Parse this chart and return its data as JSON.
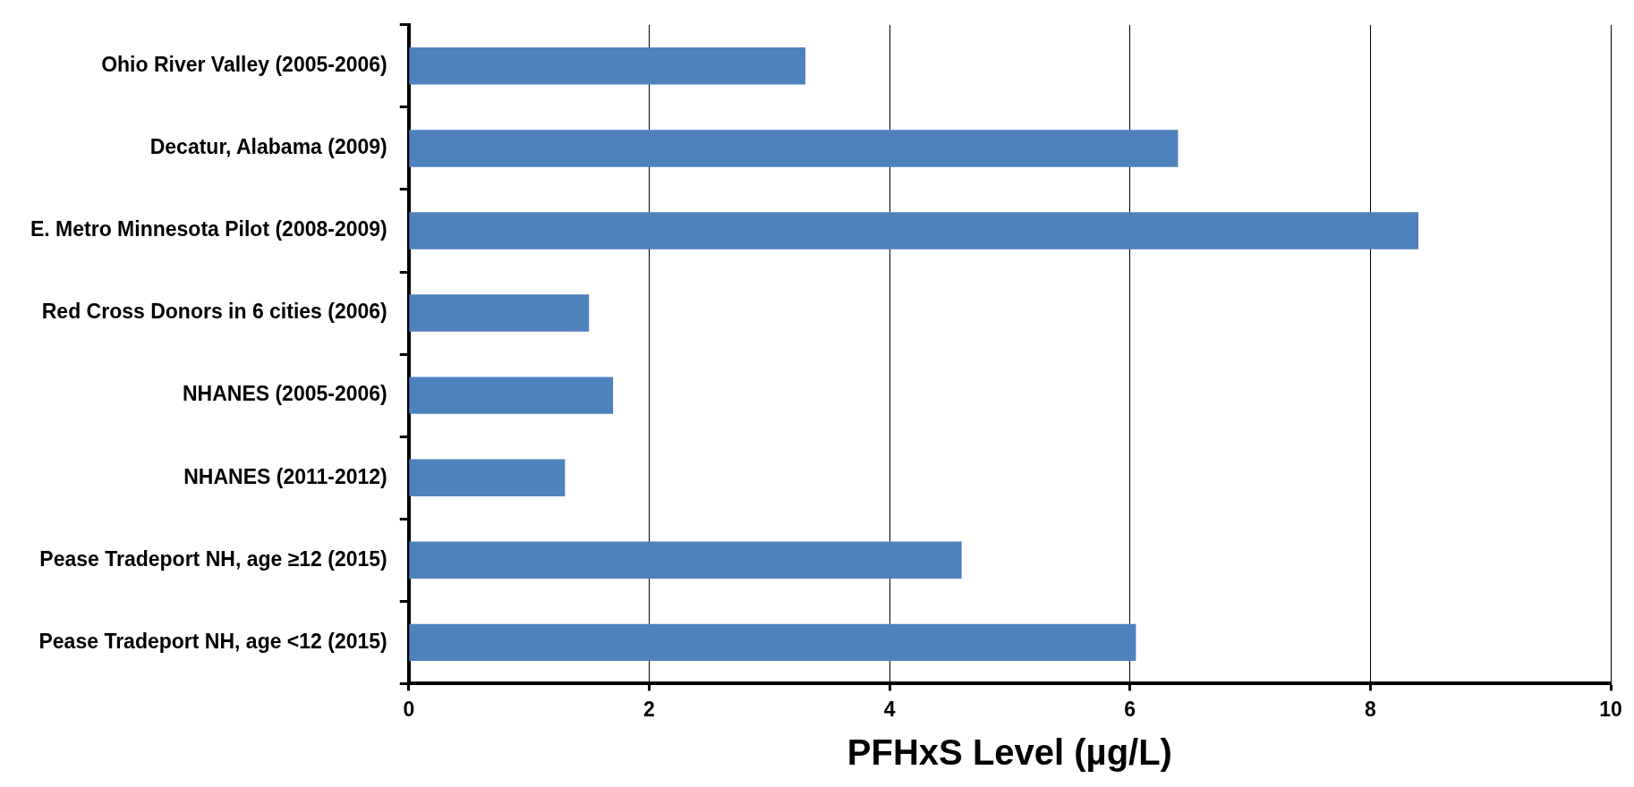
{
  "chart_data": {
    "type": "bar",
    "orientation": "horizontal",
    "xlabel": "PFHxS Level (µg/L)",
    "categories": [
      "Ohio River Valley (2005-2006)",
      "Decatur, Alabama (2009)",
      "E. Metro Minnesota Pilot (2008-2009)",
      "Red Cross Donors in 6 cities (2006)",
      "NHANES (2005-2006)",
      "NHANES (2011-2012)",
      "Pease Tradeport NH, age ≥12 (2015)",
      "Pease Tradeport NH, age <12 (2015)"
    ],
    "values": [
      3.3,
      6.4,
      8.4,
      1.5,
      1.7,
      1.3,
      4.6,
      6.05
    ],
    "color": "#4f81bd",
    "xlim": [
      0,
      10
    ],
    "xticks": [
      0,
      2,
      4,
      6,
      8,
      10
    ],
    "grid": "x",
    "legend": false
  }
}
